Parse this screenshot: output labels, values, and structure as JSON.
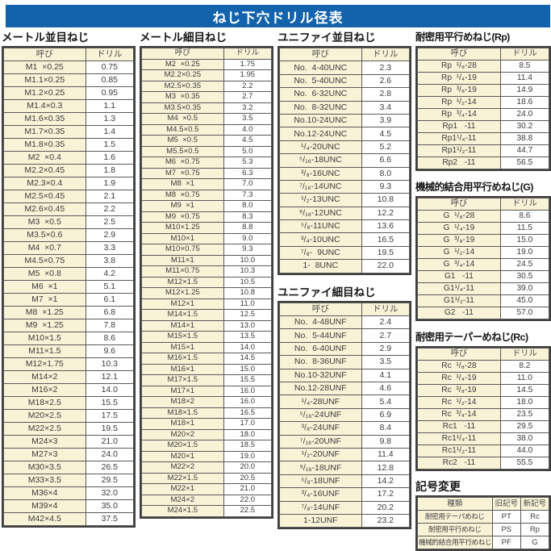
{
  "page_title": "ねじ下穴ドリル径表",
  "colors": {
    "band_bg": "#1263ac",
    "band_text": "#ffffff",
    "cell_name_bg": "#f8f2d6",
    "cell_value_bg": "#ffffff",
    "grid": "#3f3f3f"
  },
  "sections": {
    "metric_coarse": {
      "title": "メートル並目ねじ",
      "headers": [
        "呼び",
        "ドリル"
      ],
      "rows": [
        [
          "M1  ×0.25",
          "0.75"
        ],
        [
          "M1.1×0.25",
          "0.85"
        ],
        [
          "M1.2×0.25",
          "0.95"
        ],
        [
          "M1.4×0.3",
          "1.1"
        ],
        [
          "M1.6×0.35",
          "1.3"
        ],
        [
          "M1.7×0.35",
          "1.4"
        ],
        [
          "M1.8×0.35",
          "1.5"
        ],
        [
          "M2  ×0.4",
          "1.6"
        ],
        [
          "M2.2×0.45",
          "1.8"
        ],
        [
          "M2.3×0.4",
          "1.9"
        ],
        [
          "M2.5×0.45",
          "2.1"
        ],
        [
          "M2.6×0.45",
          "2.2"
        ],
        [
          "M3  ×0.5",
          "2.5"
        ],
        [
          "M3.5×0.6",
          "2.9"
        ],
        [
          "M4  ×0.7",
          "3.3"
        ],
        [
          "M4.5×0.75",
          "3.8"
        ],
        [
          "M5  ×0.8",
          "4.2"
        ],
        [
          "M6  ×1",
          "5.1"
        ],
        [
          "M7  ×1",
          "6.1"
        ],
        [
          "M8  ×1.25",
          "6.8"
        ],
        [
          "M9  ×1.25",
          "7.8"
        ],
        [
          "M10×1.5",
          "8.6"
        ],
        [
          "M11×1.5",
          "9.6"
        ],
        [
          "M12×1.75",
          "10.3"
        ],
        [
          "M14×2",
          "12.1"
        ],
        [
          "M16×2",
          "14.0"
        ],
        [
          "M18×2.5",
          "15.5"
        ],
        [
          "M20×2.5",
          "17.5"
        ],
        [
          "M22×2.5",
          "19.5"
        ],
        [
          "M24×3",
          "21.0"
        ],
        [
          "M27×3",
          "24.0"
        ],
        [
          "M30×3.5",
          "26.5"
        ],
        [
          "M33×3.5",
          "29.5"
        ],
        [
          "M36×4",
          "32.0"
        ],
        [
          "M39×4",
          "35.0"
        ],
        [
          "M42×4.5",
          "37.5"
        ]
      ]
    },
    "metric_fine": {
      "title": "メートル細目ねじ",
      "headers": [
        "呼び",
        "ドリル"
      ],
      "rows": [
        [
          "M2  ×0.25",
          "1.75"
        ],
        [
          "M2.2×0.25",
          "1.95"
        ],
        [
          "M2.5×0.35",
          "2.2"
        ],
        [
          "M3  ×0.35",
          "2.7"
        ],
        [
          "M3.5×0.35",
          "3.2"
        ],
        [
          "M4  ×0.5",
          "3.5"
        ],
        [
          "M4.5×0.5",
          "4.0"
        ],
        [
          "M5  ×0.5",
          "4.5"
        ],
        [
          "M5.5×0.5",
          "5.0"
        ],
        [
          "M6  ×0.75",
          "5.3"
        ],
        [
          "M7  ×0.75",
          "6.3"
        ],
        [
          "M8  ×1",
          "7.0"
        ],
        [
          "M8  ×0.75",
          "7.3"
        ],
        [
          "M9  ×1",
          "8.0"
        ],
        [
          "M9  ×0.75",
          "8.3"
        ],
        [
          "M10×1.25",
          "8.8"
        ],
        [
          "M10×1",
          "9.0"
        ],
        [
          "M10×0.75",
          "9.3"
        ],
        [
          "M11×1",
          "10.0"
        ],
        [
          "M11×0.75",
          "10.3"
        ],
        [
          "M12×1.5",
          "10.5"
        ],
        [
          "M12×1.25",
          "10.8"
        ],
        [
          "M12×1",
          "11.0"
        ],
        [
          "M14×1.5",
          "12.5"
        ],
        [
          "M14×1",
          "13.0"
        ],
        [
          "M15×1.5",
          "13.5"
        ],
        [
          "M15×1",
          "14.0"
        ],
        [
          "M16×1.5",
          "14.5"
        ],
        [
          "M16×1",
          "15.0"
        ],
        [
          "M17×1.5",
          "15.5"
        ],
        [
          "M17×1",
          "16.0"
        ],
        [
          "M18×2",
          "16.0"
        ],
        [
          "M18×1.5",
          "16.5"
        ],
        [
          "M18×1",
          "17.0"
        ],
        [
          "M20×2",
          "18.0"
        ],
        [
          "M20×1.5",
          "18.5"
        ],
        [
          "M20×1",
          "19.0"
        ],
        [
          "M22×2",
          "20.0"
        ],
        [
          "M22×1.5",
          "20.5"
        ],
        [
          "M22×1",
          "21.0"
        ],
        [
          "M24×2",
          "22.0"
        ],
        [
          "M24×1.5",
          "22.5"
        ]
      ]
    },
    "unified_coarse": {
      "title": "ユニファイ並目ねじ",
      "headers": [
        "呼び",
        "ドリル"
      ],
      "rows": [
        [
          "No.  4-40UNC",
          "2.3"
        ],
        [
          "No.  5-40UNC",
          "2.6"
        ],
        [
          "No.  6-32UNC",
          "2.8"
        ],
        [
          "No.  8-32UNC",
          "3.4"
        ],
        [
          "No.10-24UNC",
          "3.9"
        ],
        [
          "No.12-24UNC",
          "4.5"
        ],
        [
          "¹/₄-20UNC",
          "5.2"
        ],
        [
          "⁵/₁₆-18UNC",
          "6.6"
        ],
        [
          "³/₈-16UNC",
          "8.0"
        ],
        [
          "⁷/₁₆-14UNC",
          "9.3"
        ],
        [
          "¹/₂-13UNC",
          "10.8"
        ],
        [
          "⁹/₁₆-12UNC",
          "12.2"
        ],
        [
          "⁵/₈-11UNC",
          "13.6"
        ],
        [
          "³/₄-10UNC",
          "16.5"
        ],
        [
          "⁷/₈-  9UNC",
          "19.5"
        ],
        [
          "1-  8UNC",
          "22.0"
        ]
      ]
    },
    "unified_fine": {
      "title": "ユニファイ細目ねじ",
      "headers": [
        "呼び",
        "ドリル"
      ],
      "rows": [
        [
          "No.  4-48UNF",
          "2.4"
        ],
        [
          "No.  5-44UNF",
          "2.7"
        ],
        [
          "No.  6-40UNF",
          "2.9"
        ],
        [
          "No.  8-36UNF",
          "3.5"
        ],
        [
          "No.10-32UNF",
          "4.1"
        ],
        [
          "No.12-28UNF",
          "4.6"
        ],
        [
          "¹/₄-28UNF",
          "5.4"
        ],
        [
          "⁵/₁₆-24UNF",
          "6.9"
        ],
        [
          "³/₈-24UNF",
          "8.4"
        ],
        [
          "⁷/₁₆-20UNF",
          "9.8"
        ],
        [
          "¹/₂-20UNF",
          "11.4"
        ],
        [
          "⁹/₁₆-18UNF",
          "12.8"
        ],
        [
          "⁵/₈-18UNF",
          "14.2"
        ],
        [
          "³/₄-16UNF",
          "17.2"
        ],
        [
          "⁷/₈-14UNF",
          "20.2"
        ],
        [
          "1-12UNF",
          "23.2"
        ]
      ]
    },
    "rp": {
      "title": "耐密用平行めねじ(Rp)",
      "headers": [
        "呼び",
        "ドリル"
      ],
      "rows": [
        [
          "Rp  ¹/₈-28",
          "8.5"
        ],
        [
          "Rp  ¹/₄-19",
          "11.4"
        ],
        [
          "Rp  ³/₈-19",
          "14.9"
        ],
        [
          "Rp  ¹/₂-14",
          "18.6"
        ],
        [
          "Rp  ³/₄-14",
          "24.0"
        ],
        [
          "Rp1   -11",
          "30.2"
        ],
        [
          "Rp1¹/₄-11",
          "38.8"
        ],
        [
          "Rp1¹/₂-11",
          "44.7"
        ],
        [
          "Rp2   -11",
          "56.5"
        ]
      ]
    },
    "g": {
      "title": "機械的結合用平行めねじ(G)",
      "headers": [
        "呼び",
        "ドリル"
      ],
      "rows": [
        [
          "G  ¹/₈-28",
          "8.6"
        ],
        [
          "G  ¹/₄-19",
          "11.5"
        ],
        [
          "G  ³/₈-19",
          "15.0"
        ],
        [
          "G  ¹/₂-14",
          "19.0"
        ],
        [
          "G  ³/₄-14",
          "24.5"
        ],
        [
          "G1   -11",
          "30.5"
        ],
        [
          "G1¹/₄-11",
          "39.0"
        ],
        [
          "G1¹/₂-11",
          "45.0"
        ],
        [
          "G2   -11",
          "57.0"
        ]
      ]
    },
    "rc": {
      "title": "耐密用テーパーめねじ(Rc)",
      "headers": [
        "呼び",
        "ドリル"
      ],
      "rows": [
        [
          "Rc  ¹/₈-28",
          "8.2"
        ],
        [
          "Rc  ¹/₄-19",
          "11.0"
        ],
        [
          "Rc  ³/₈-19",
          "14.5"
        ],
        [
          "Rc  ¹/₂-14",
          "18.0"
        ],
        [
          "Rc  ³/₄-14",
          "23.5"
        ],
        [
          "Rc1   -11",
          "29.5"
        ],
        [
          "Rc1¹/₄-11",
          "38.0"
        ],
        [
          "Rc1¹/₂-11",
          "44.0"
        ],
        [
          "Rc2   -11",
          "55.5"
        ]
      ]
    },
    "symbol_change": {
      "title": "記号変更",
      "headers": [
        "種類",
        "旧記号",
        "新記号"
      ],
      "rows": [
        [
          "耐密用テーパめねじ",
          "PT",
          "Rc"
        ],
        [
          "耐密用平行めねじ",
          "PS",
          "Rp"
        ],
        [
          "機械的結合用平行めねじ",
          "PF",
          "G"
        ]
      ]
    }
  }
}
